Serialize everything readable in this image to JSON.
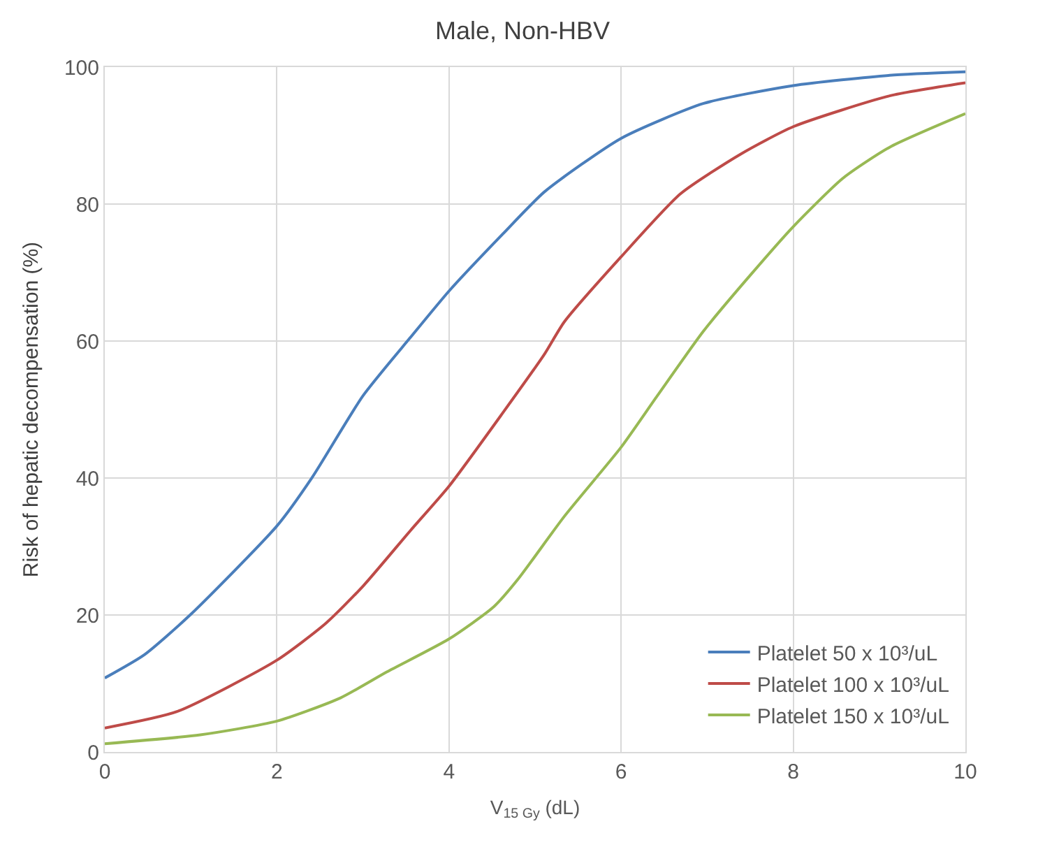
{
  "chart_data": {
    "type": "line",
    "title": "Male, Non-HBV",
    "xlabel": "V$_{15 Gy}$ (dL)",
    "ylabel": "Risk of hepatic decompensation (%)",
    "xlim": [
      0,
      10
    ],
    "xticks": [
      0,
      2,
      4,
      6,
      8,
      10
    ],
    "ylim": [
      0,
      100
    ],
    "yticks": [
      0,
      20,
      40,
      60,
      80,
      100
    ],
    "grid": true,
    "legend": "bottom right",
    "marker": "none",
    "line_style": "solid",
    "series": [
      {
        "name": "Platelet 50 x 10³/uL",
        "color": "#4a7ebb",
        "x": [
          0,
          0.46,
          1.0,
          2.0,
          2.41,
          3.0,
          3.55,
          4.0,
          4.63,
          5.11,
          6.0,
          6.96,
          8.0,
          9.12,
          10.0
        ],
        "values": [
          10.8,
          14.2,
          20.1,
          33.0,
          40.1,
          52.0,
          60.5,
          67.3,
          75.7,
          81.8,
          89.6,
          94.7,
          97.3,
          98.8,
          99.3
        ]
      },
      {
        "name": "Platelet 100 x 10³/uL",
        "color": "#be4b48",
        "x": [
          0,
          0.84,
          2.0,
          2.57,
          3.0,
          3.55,
          4.0,
          4.63,
          5.11,
          5.34,
          6.0,
          6.69,
          7.39,
          8.0,
          9.12,
          10.0
        ],
        "values": [
          3.5,
          5.9,
          13.4,
          18.8,
          24.2,
          32.3,
          38.8,
          49.6,
          58.1,
          62.8,
          72.3,
          81.5,
          87.3,
          91.3,
          95.8,
          97.7
        ]
      },
      {
        "name": "Platelet 150 x 10³/uL",
        "color": "#98b954",
        "x": [
          0,
          1.11,
          2.0,
          2.74,
          3.28,
          4.0,
          4.52,
          4.8,
          5.34,
          6.0,
          6.42,
          6.96,
          7.5,
          8.0,
          8.58,
          9.12,
          10.0
        ],
        "values": [
          1.2,
          2.5,
          4.5,
          7.9,
          11.7,
          16.5,
          21.2,
          25.2,
          34.4,
          44.5,
          52.0,
          61.5,
          69.6,
          76.7,
          83.8,
          88.3,
          93.2
        ]
      }
    ]
  }
}
